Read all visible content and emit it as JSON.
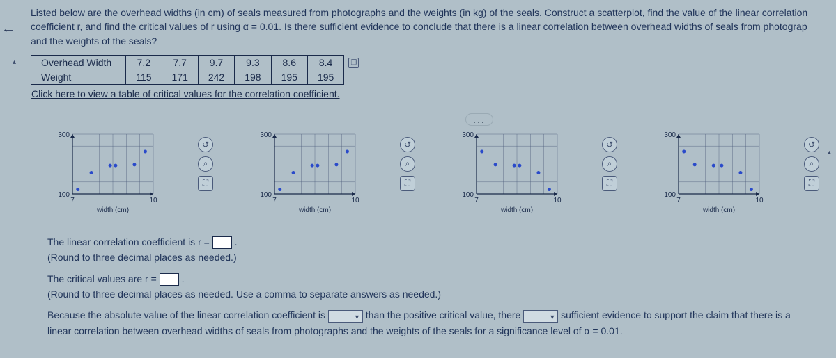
{
  "prompt": {
    "line1": "Listed below are the overhead widths (in cm) of seals measured from photographs and the weights (in kg) of the seals. Construct a scatterplot, find the value of the linear correlation",
    "line2": "coefficient r, and find the critical values of r using α = 0.01. Is there sufficient evidence to conclude that there is a linear correlation between overhead widths of seals from photograp",
    "line3": "and the weights of the seals?"
  },
  "table": {
    "row1_label": "Overhead Width",
    "row2_label": "Weight",
    "width_values": [
      "7.2",
      "7.7",
      "9.7",
      "9.3",
      "8.6",
      "8.4"
    ],
    "weight_values": [
      "115",
      "171",
      "242",
      "198",
      "195",
      "195"
    ]
  },
  "link_text": "Click here to view a table of critical values for the correlation coefficient.",
  "ellipsis": "...",
  "charts": {
    "common": {
      "xlabel": "width (cm)",
      "xmin": 7,
      "xmax": 10,
      "ymin": 100,
      "ymax": 300,
      "yticks": [
        100,
        300
      ],
      "xticks": [
        7,
        10
      ],
      "grid_color": "#4a5a7a",
      "bg_color": "#b0bfc8",
      "axis_color": "#1a2a4a",
      "point_color": "#2a4aca",
      "font_size": 10
    },
    "A": {
      "points": [
        [
          7.2,
          115
        ],
        [
          7.7,
          171
        ],
        [
          8.4,
          195
        ],
        [
          8.6,
          195
        ],
        [
          9.3,
          198
        ],
        [
          9.7,
          242
        ]
      ],
      "trend": "rising"
    },
    "B": {
      "points": [
        [
          7.2,
          115
        ],
        [
          7.7,
          171
        ],
        [
          8.4,
          195
        ],
        [
          8.6,
          195
        ],
        [
          9.3,
          198
        ],
        [
          9.7,
          242
        ]
      ],
      "trend": "rising_alt"
    },
    "C": {
      "points": [
        [
          7.2,
          242
        ],
        [
          7.7,
          198
        ],
        [
          8.4,
          195
        ],
        [
          8.6,
          195
        ],
        [
          9.3,
          171
        ],
        [
          9.7,
          115
        ]
      ],
      "trend": "falling"
    },
    "D": {
      "points": [
        [
          7.2,
          242
        ],
        [
          7.6,
          198
        ],
        [
          8.3,
          195
        ],
        [
          8.6,
          195
        ],
        [
          9.3,
          171
        ],
        [
          9.7,
          115
        ]
      ],
      "trend": "falling_alt"
    }
  },
  "answers": {
    "line1_a": "The linear correlation coefficient is r = ",
    "line1_b": ".",
    "round1": "(Round to three decimal places as needed.)",
    "line2_a": "The critical values are r = ",
    "line2_b": ".",
    "round2": "(Round to three decimal places as needed. Use a comma to separate answers as needed.)",
    "conc_a": "Because the absolute value of the linear correlation coefficient is ",
    "conc_b": " than the positive critical value, there ",
    "conc_c": " sufficient evidence to support the claim that there is a",
    "conc_d": "linear correlation between overhead widths of seals from photographs and the weights of the seals for a significance level of α = 0.01."
  },
  "icons": {
    "reset": "↺",
    "zoom": "⌕",
    "expand": "⛶",
    "copy": "❐"
  }
}
